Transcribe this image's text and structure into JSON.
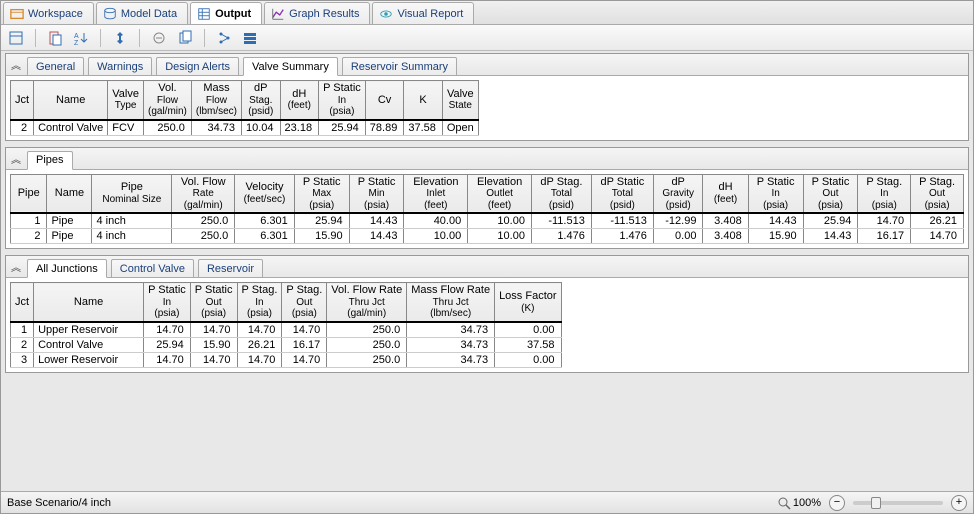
{
  "main_tabs": [
    {
      "label": "Workspace",
      "color": "#d98a2b"
    },
    {
      "label": "Model Data",
      "color": "#2f6db3"
    },
    {
      "label": "Output",
      "color": "#2f6db3"
    },
    {
      "label": "Graph Results",
      "color": "#8a2fb3"
    },
    {
      "label": "Visual Report",
      "color": "#2f9db3"
    }
  ],
  "panel1": {
    "tabs": [
      "General",
      "Warnings",
      "Design Alerts",
      "Valve Summary",
      "Reservoir Summary"
    ],
    "columns": [
      {
        "h1": "Jct",
        "h2": ""
      },
      {
        "h1": "Name",
        "h2": ""
      },
      {
        "h1": "Valve",
        "h2": "Type"
      },
      {
        "h1": "Vol.",
        "h2": "Flow",
        "h3": "(gal/min)"
      },
      {
        "h1": "Mass",
        "h2": "Flow",
        "h3": "(lbm/sec)"
      },
      {
        "h1": "dP",
        "h2": "Stag.",
        "h3": "(psid)"
      },
      {
        "h1": "dH",
        "h2": "",
        "h3": "(feet)"
      },
      {
        "h1": "P Static",
        "h2": "In",
        "h3": "(psia)"
      },
      {
        "h1": "Cv",
        "h2": ""
      },
      {
        "h1": "K",
        "h2": ""
      },
      {
        "h1": "Valve",
        "h2": "State"
      }
    ],
    "rows": [
      {
        "jct": "2",
        "name": "Control Valve",
        "type": "FCV",
        "vol": "250.0",
        "mass": "34.73",
        "dp": "10.04",
        "dh": "23.18",
        "psi": "25.94",
        "cv": "78.89",
        "k": "37.58",
        "state": "Open"
      }
    ]
  },
  "panel2": {
    "tabs": [
      "Pipes"
    ],
    "columns": [
      {
        "h1": "Pipe",
        "h2": ""
      },
      {
        "h1": "Name",
        "h2": ""
      },
      {
        "h1": "Pipe",
        "h2": "Nominal Size"
      },
      {
        "h1": "Vol. Flow",
        "h2": "Rate",
        "h3": "(gal/min)"
      },
      {
        "h1": "Velocity",
        "h2": "",
        "h3": "(feet/sec)"
      },
      {
        "h1": "P Static",
        "h2": "Max",
        "h3": "(psia)"
      },
      {
        "h1": "P Static",
        "h2": "Min",
        "h3": "(psia)"
      },
      {
        "h1": "Elevation",
        "h2": "Inlet",
        "h3": "(feet)"
      },
      {
        "h1": "Elevation",
        "h2": "Outlet",
        "h3": "(feet)"
      },
      {
        "h1": "dP Stag.",
        "h2": "Total",
        "h3": "(psid)"
      },
      {
        "h1": "dP Static",
        "h2": "Total",
        "h3": "(psid)"
      },
      {
        "h1": "dP",
        "h2": "Gravity",
        "h3": "(psid)"
      },
      {
        "h1": "dH",
        "h2": "",
        "h3": "(feet)"
      },
      {
        "h1": "P Static",
        "h2": "In",
        "h3": "(psia)"
      },
      {
        "h1": "P Static",
        "h2": "Out",
        "h3": "(psia)"
      },
      {
        "h1": "P Stag.",
        "h2": "In",
        "h3": "(psia)"
      },
      {
        "h1": "P Stag.",
        "h2": "Out",
        "h3": "(psia)"
      }
    ],
    "rows": [
      {
        "id": "1",
        "name": "Pipe",
        "size": "4 inch",
        "vol": "250.0",
        "vel": "6.301",
        "pmax": "25.94",
        "pmin": "14.43",
        "ein": "40.00",
        "eout": "10.00",
        "dpst": "-11.513",
        "dpsta": "-11.513",
        "dpg": "-12.99",
        "dh": "3.408",
        "psin": "14.43",
        "psout": "25.94",
        "pstin": "14.70",
        "pstout": "26.21"
      },
      {
        "id": "2",
        "name": "Pipe",
        "size": "4 inch",
        "vol": "250.0",
        "vel": "6.301",
        "pmax": "15.90",
        "pmin": "14.43",
        "ein": "10.00",
        "eout": "10.00",
        "dpst": "1.476",
        "dpsta": "1.476",
        "dpg": "0.00",
        "dh": "3.408",
        "psin": "15.90",
        "psout": "14.43",
        "pstin": "16.17",
        "pstout": "14.70"
      }
    ]
  },
  "panel3": {
    "tabs": [
      "All Junctions",
      "Control Valve",
      "Reservoir"
    ],
    "columns": [
      {
        "h1": "Jct",
        "h2": ""
      },
      {
        "h1": "Name",
        "h2": ""
      },
      {
        "h1": "P Static",
        "h2": "In",
        "h3": "(psia)"
      },
      {
        "h1": "P Static",
        "h2": "Out",
        "h3": "(psia)"
      },
      {
        "h1": "P Stag.",
        "h2": "In",
        "h3": "(psia)"
      },
      {
        "h1": "P Stag.",
        "h2": "Out",
        "h3": "(psia)"
      },
      {
        "h1": "Vol. Flow Rate",
        "h2": "Thru Jct",
        "h3": "(gal/min)"
      },
      {
        "h1": "Mass Flow Rate",
        "h2": "Thru Jct",
        "h3": "(lbm/sec)"
      },
      {
        "h1": "Loss Factor",
        "h2": "(K)"
      }
    ],
    "rows": [
      {
        "id": "1",
        "name": "Upper Reservoir",
        "psin": "14.70",
        "psout": "14.70",
        "pstin": "14.70",
        "pstout": "14.70",
        "vol": "250.0",
        "mass": "34.73",
        "loss": "0.00"
      },
      {
        "id": "2",
        "name": "Control Valve",
        "psin": "25.94",
        "psout": "15.90",
        "pstin": "26.21",
        "pstout": "16.17",
        "vol": "250.0",
        "mass": "34.73",
        "loss": "37.58"
      },
      {
        "id": "3",
        "name": "Lower Reservoir",
        "psin": "14.70",
        "psout": "14.70",
        "pstin": "14.70",
        "pstout": "14.70",
        "vol": "250.0",
        "mass": "34.73",
        "loss": "0.00"
      }
    ]
  },
  "status": {
    "scenario": "Base Scenario/4 inch",
    "zoom": "100%"
  }
}
